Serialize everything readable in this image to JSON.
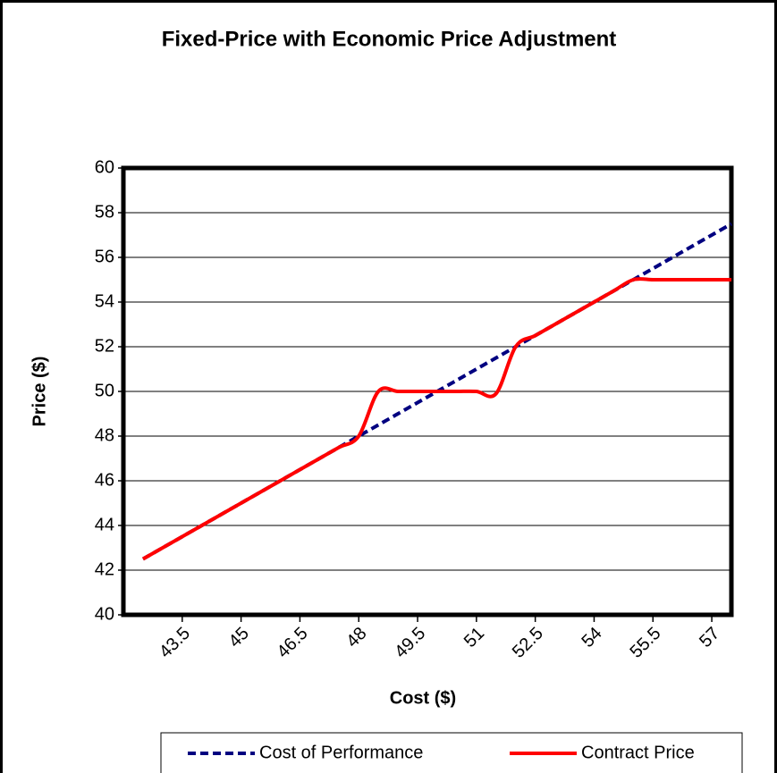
{
  "chart_data": {
    "type": "line",
    "title": "Fixed-Price with Economic Price Adjustment",
    "x_label": "Cost ($)",
    "y_label": "Price ($)",
    "x": [
      42.5,
      43,
      43.5,
      44,
      44.5,
      45,
      45.5,
      46,
      46.5,
      47,
      47.5,
      48,
      48.5,
      49,
      49.5,
      50,
      50.5,
      51,
      51.5,
      52,
      52.5,
      53,
      53.5,
      54,
      54.5,
      55,
      55.5,
      56,
      56.5,
      57,
      57.5
    ],
    "series": [
      {
        "name": "Cost of Performance",
        "color": "#000080",
        "dashed": true,
        "values": [
          42.5,
          43,
          43.5,
          44,
          44.5,
          45,
          45.5,
          46,
          46.5,
          47,
          47.5,
          48,
          48.5,
          49,
          49.5,
          50,
          50.5,
          51,
          51.5,
          52,
          52.5,
          53,
          53.5,
          54,
          54.5,
          55,
          55.5,
          56,
          56.5,
          57,
          57.5
        ]
      },
      {
        "name": "Contract Price",
        "color": "#ff0000",
        "dashed": false,
        "values": [
          42.5,
          43,
          43.5,
          44,
          44.5,
          45,
          45.5,
          46,
          46.5,
          47,
          47.5,
          48,
          50,
          50,
          50,
          50,
          50,
          50,
          49.9,
          52,
          52.5,
          53,
          53.5,
          54,
          54.5,
          55,
          55,
          55,
          55,
          55,
          55
        ]
      }
    ],
    "xlim": [
      42,
      57.5
    ],
    "xticks": [
      43.5,
      45,
      46.5,
      48,
      49.5,
      51,
      52.5,
      54,
      55.5,
      57
    ],
    "ylim": [
      40,
      60
    ],
    "yticks": [
      40,
      42,
      44,
      46,
      48,
      50,
      52,
      54,
      56,
      58,
      60
    ],
    "grid": true,
    "legend": "bottom"
  }
}
